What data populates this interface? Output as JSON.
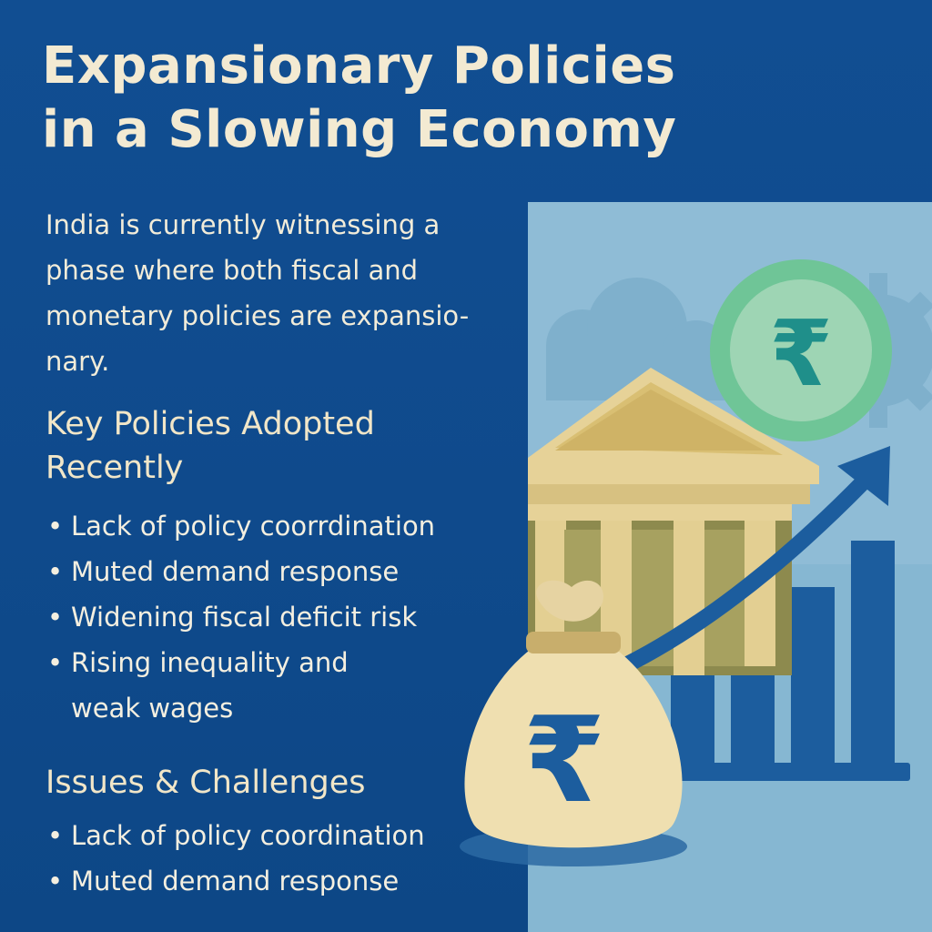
{
  "title": {
    "line1": "Expansionary Policies",
    "line2": "in a Slowing Economy"
  },
  "intro_text": "India is currently witnessing a phase where both fiscal and monetary policies are expansio-nary.",
  "key_policies": {
    "heading": "Key Policies Adopted Recently",
    "items": [
      "Lack of policy coorrdination",
      "Muted demand response",
      "Widening fiscal deficit risk",
      "Rising inequality and weak wages"
    ]
  },
  "issues": {
    "heading": "Issues & Challenges",
    "items": [
      "Lack of policy coordination",
      "Muted demand response"
    ]
  },
  "illustration": {
    "coin_symbol": "₹",
    "bag_symbol": "₹",
    "icons": [
      "bank-building-icon",
      "rupee-coin-icon",
      "money-bag-icon",
      "upward-arrow-icon",
      "bar-chart-icon",
      "gear-icon"
    ],
    "colors": {
      "background": "#0f4a8c",
      "panel": "#8fbcd6",
      "building": "#e6d298",
      "coin_outer": "#6fc597",
      "coin_inner": "#9ed5b4",
      "bars": "#1c5d9e",
      "text_light": "#f3ead2"
    }
  }
}
